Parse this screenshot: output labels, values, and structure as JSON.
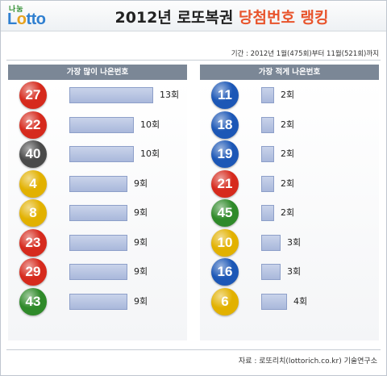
{
  "header": {
    "logo_top": "나눔",
    "logo_main_pre": "L",
    "logo_main_o": "o",
    "logo_main_post": "tto",
    "title_main": "2012년 로또복권 ",
    "title_highlight": "당첨번호 랭킹"
  },
  "period": "기간 : 2012년 1월(475회)부터 11월(521회)까지",
  "source": "자료 : 로또리치(lottorich.co.kr) 기술연구소",
  "colors": {
    "yellow": "#e2b100",
    "blue": "#1c57b6",
    "red": "#d62a1d",
    "gray": "#4a4a4a",
    "green": "#2f8a2a"
  },
  "chart_data": [
    {
      "type": "bar",
      "orientation": "horizontal",
      "title": "가장 많이 나온번호",
      "categories": [
        "27",
        "22",
        "40",
        "4",
        "8",
        "23",
        "29",
        "43"
      ],
      "ball_colors": [
        "red",
        "red",
        "gray",
        "yellow",
        "yellow",
        "red",
        "red",
        "green"
      ],
      "values": [
        13,
        10,
        10,
        9,
        9,
        9,
        9,
        9
      ],
      "value_labels": [
        "13회",
        "10회",
        "10회",
        "9회",
        "9회",
        "9회",
        "9회",
        "9회"
      ],
      "unit": "회"
    },
    {
      "type": "bar",
      "orientation": "horizontal",
      "title": "가장 적게 나온번호",
      "categories": [
        "11",
        "18",
        "19",
        "21",
        "45",
        "10",
        "16",
        "6"
      ],
      "ball_colors": [
        "blue",
        "blue",
        "blue",
        "red",
        "green",
        "yellow",
        "blue",
        "yellow"
      ],
      "values": [
        2,
        2,
        2,
        2,
        2,
        3,
        3,
        4
      ],
      "value_labels": [
        "2회",
        "2회",
        "2회",
        "2회",
        "2회",
        "3회",
        "3회",
        "4회"
      ],
      "unit": "회"
    }
  ]
}
